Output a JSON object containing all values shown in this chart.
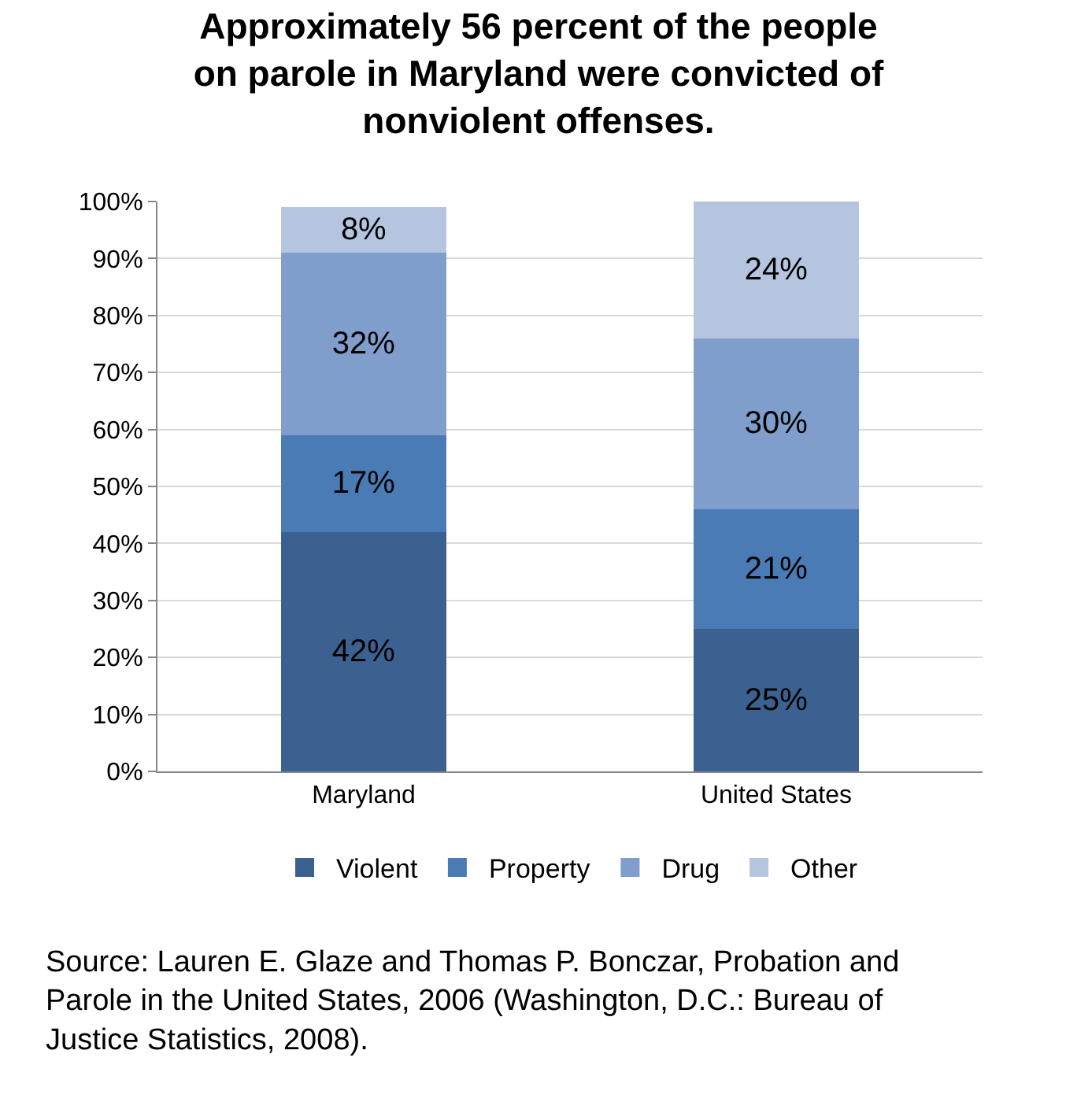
{
  "chart_data": {
    "type": "bar",
    "stacked": true,
    "title": "Approximately 56 percent of the people\non parole in Maryland were convicted of\nnonviolent offenses.",
    "categories": [
      "Maryland",
      "United States"
    ],
    "series": [
      {
        "name": "Violent",
        "color": "#3b6190",
        "values": [
          42,
          25
        ],
        "value_labels": [
          "42%",
          "25%"
        ]
      },
      {
        "name": "Property",
        "color": "#4a7bb5",
        "values": [
          17,
          21
        ],
        "value_labels": [
          "17%",
          "21%"
        ]
      },
      {
        "name": "Drug",
        "color": "#7f9ecb",
        "values": [
          32,
          30
        ],
        "value_labels": [
          "32%",
          "30%"
        ]
      },
      {
        "name": "Other",
        "color": "#b5c5e0",
        "values": [
          8,
          24
        ],
        "value_labels": [
          "8%",
          "24%"
        ]
      }
    ],
    "ylim": [
      0,
      100
    ],
    "yticks": [
      {
        "value": 0,
        "label": "0%"
      },
      {
        "value": 10,
        "label": "10%"
      },
      {
        "value": 20,
        "label": "20%"
      },
      {
        "value": 30,
        "label": "30%"
      },
      {
        "value": 40,
        "label": "40%"
      },
      {
        "value": 50,
        "label": "50%"
      },
      {
        "value": 60,
        "label": "60%"
      },
      {
        "value": 70,
        "label": "70%"
      },
      {
        "value": 80,
        "label": "80%"
      },
      {
        "value": 90,
        "label": "90%"
      },
      {
        "value": 100,
        "label": "100%"
      }
    ],
    "grid": "y",
    "legend": "bottom",
    "annotations": [
      "Source: Lauren E. Glaze and Thomas P. Bonczar, Probation and Parole in the United States, 2006 (Washington, D.C.: Bureau of Justice Statistics, 2008)."
    ]
  }
}
